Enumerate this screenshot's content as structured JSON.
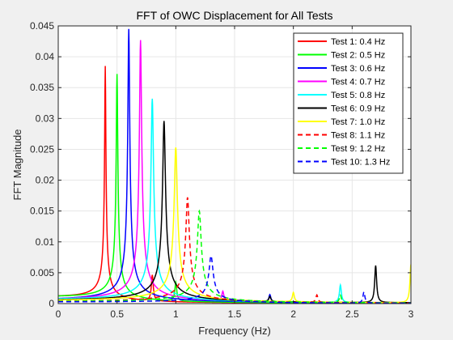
{
  "chart_data": {
    "type": "line",
    "title": "FFT of OWC Displacement for All Tests",
    "xlabel": "Frequency (Hz)",
    "ylabel": "FFT Magnitude",
    "xlim": [
      0,
      3
    ],
    "ylim": [
      0,
      0.045
    ],
    "x_ticks": [
      0,
      0.5,
      1,
      1.5,
      2,
      2.5,
      3
    ],
    "x_tick_labels": [
      "0",
      "0.5",
      "1",
      "1.5",
      "2",
      "2.5",
      "3"
    ],
    "y_ticks": [
      0,
      0.005,
      0.01,
      0.015,
      0.02,
      0.025,
      0.03,
      0.035,
      0.04,
      0.045
    ],
    "y_tick_labels": [
      "0",
      "0.005",
      "0.01",
      "0.015",
      "0.02",
      "0.025",
      "0.03",
      "0.035",
      "0.04",
      "0.045"
    ],
    "grid": true,
    "legend_position": "top-right",
    "series": [
      {
        "name": "Test 1: 0.4 Hz",
        "color": "#ff0000",
        "dashed": false,
        "peak_x": 0.4,
        "peak_y": 0.0385,
        "base": 0.0008,
        "harmonics": [
          [
            0.8,
            0.0042
          ]
        ]
      },
      {
        "name": "Test 2: 0.5 Hz",
        "color": "#00ff00",
        "dashed": false,
        "peak_x": 0.5,
        "peak_y": 0.0372,
        "base": 0.0008,
        "harmonics": [
          [
            1.0,
            0.003
          ]
        ]
      },
      {
        "name": "Test 3: 0.6 Hz",
        "color": "#0000ff",
        "dashed": false,
        "peak_x": 0.6,
        "peak_y": 0.0445,
        "base": 0.0003,
        "harmonics": [
          [
            1.8,
            0.0012
          ]
        ]
      },
      {
        "name": "Test 4: 0.7 Hz",
        "color": "#ff00ff",
        "dashed": false,
        "peak_x": 0.7,
        "peak_y": 0.0427,
        "base": 0.0003,
        "harmonics": [
          [
            1.4,
            0.0015
          ]
        ]
      },
      {
        "name": "Test 5: 0.8 Hz",
        "color": "#00ffff",
        "dashed": false,
        "peak_x": 0.8,
        "peak_y": 0.0332,
        "base": 0.0004,
        "harmonics": [
          [
            2.4,
            0.0028
          ]
        ]
      },
      {
        "name": "Test 6: 0.9 Hz",
        "color": "#000000",
        "dashed": false,
        "peak_x": 0.9,
        "peak_y": 0.0296,
        "base": 0.0003,
        "harmonics": [
          [
            1.8,
            0.0008
          ],
          [
            2.7,
            0.006
          ]
        ]
      },
      {
        "name": "Test 7: 1.0 Hz",
        "color": "#ffff00",
        "dashed": false,
        "peak_x": 1.0,
        "peak_y": 0.0253,
        "base": 0.0003,
        "harmonics": [
          [
            2.0,
            0.0015
          ],
          [
            3.0,
            0.0062
          ]
        ]
      },
      {
        "name": "Test 8: 1.1 Hz",
        "color": "#ff0000",
        "dashed": true,
        "peak_x": 1.1,
        "peak_y": 0.0172,
        "base": 0.0002,
        "harmonics": [
          [
            2.2,
            0.0012
          ]
        ]
      },
      {
        "name": "Test 9: 1.2 Hz",
        "color": "#00ff00",
        "dashed": true,
        "peak_x": 1.2,
        "peak_y": 0.015,
        "base": 0.0002,
        "harmonics": [
          [
            2.4,
            0.0012
          ]
        ]
      },
      {
        "name": "Test 10: 1.3 Hz",
        "color": "#0000ff",
        "dashed": true,
        "peak_x": 1.3,
        "peak_y": 0.0077,
        "base": 0.0002,
        "harmonics": [
          [
            2.6,
            0.0018
          ]
        ]
      }
    ]
  }
}
